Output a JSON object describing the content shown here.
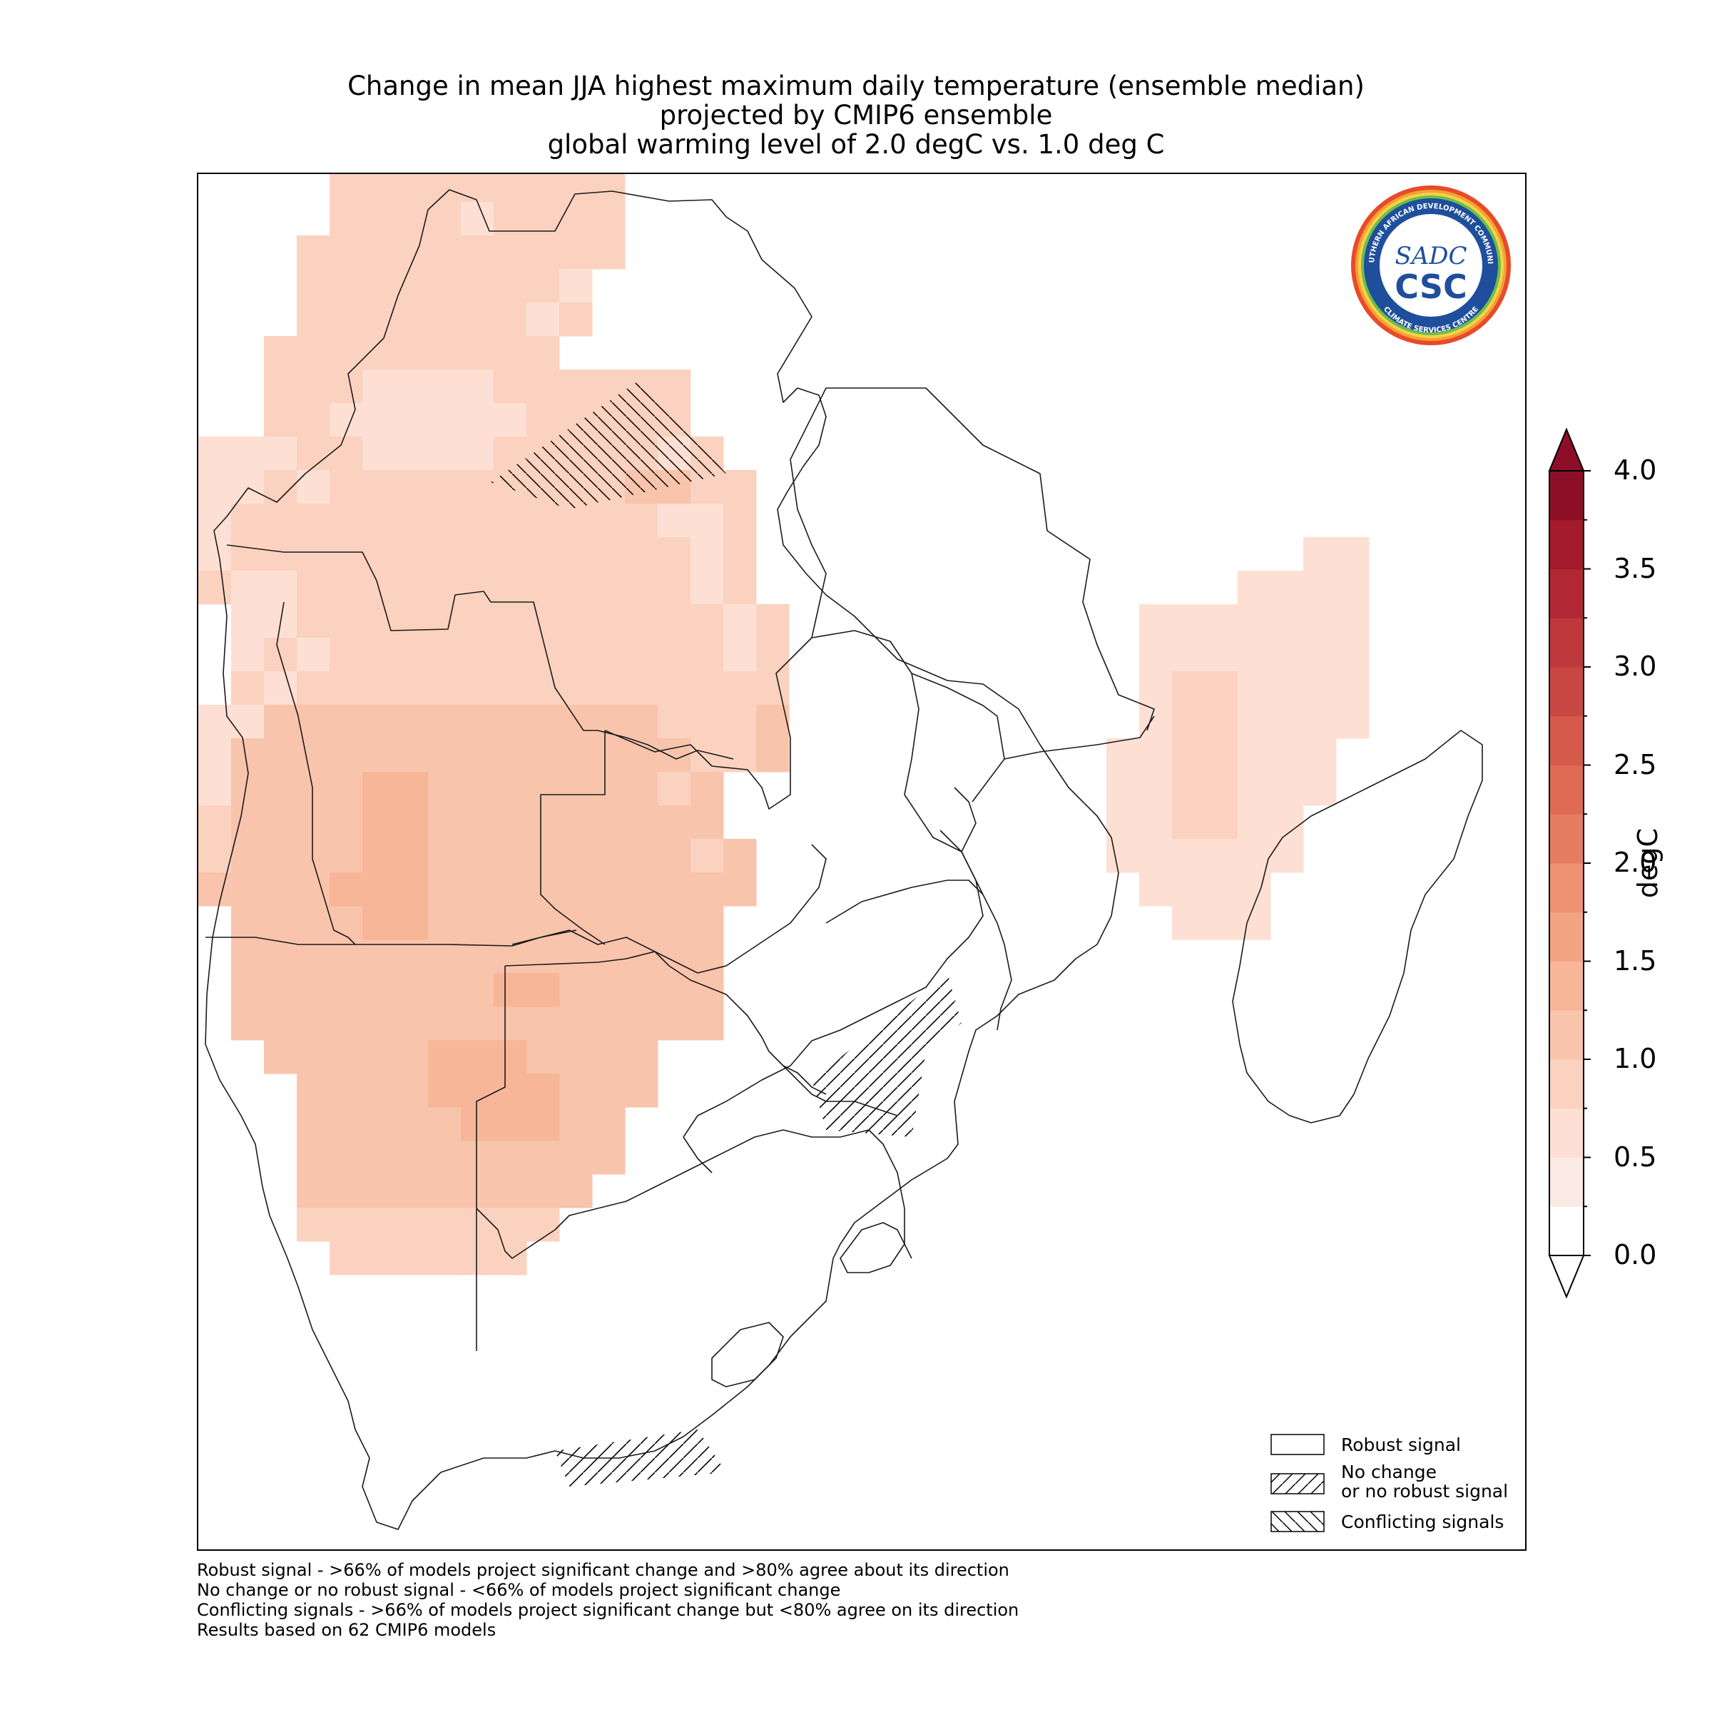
{
  "title_lines": [
    "Change in mean JJA highest maximum daily temperature (ensemble median)",
    "projected by CMIP6 ensemble",
    "global warming level of 2.0 degC vs. 1.0 deg C"
  ],
  "colorbar": {
    "label": "degC",
    "ticks": [
      "0.0",
      "0.5",
      "1.0",
      "1.5",
      "2.0",
      "2.5",
      "3.0",
      "3.5",
      "4.0"
    ],
    "min": 0.0,
    "max": 4.0,
    "step": 0.25,
    "extend": "both",
    "colors": [
      "#ffffff",
      "#fbeae4",
      "#fde0d3",
      "#fbd2bf",
      "#f9c4ac",
      "#f7b698",
      "#f3a484",
      "#ee9272",
      "#e67d62",
      "#df6b55",
      "#d55a4b",
      "#c94743",
      "#bf383b",
      "#b12834",
      "#a31a2d",
      "#8d0f27"
    ]
  },
  "legend": {
    "robust": "Robust signal",
    "no_change_line1": "No change",
    "no_change_line2": "or no robust signal",
    "conflicting": "Conflicting signals"
  },
  "footnotes": [
    "Robust signal - >66% of models project significant change and >80% agree about its direction",
    "No change or no robust signal - <66% of models project significant change",
    "Conflicting signals - >66% of models project significant change but <80% agree on its direction",
    "Results based on 62 CMIP6 models"
  ],
  "logo": {
    "text_top": "SOUTHERN AFRICAN DEVELOPMENT COMMUNITY",
    "text_bottom": "CLIMATE SERVICES CENTRE",
    "monogram": "SADC",
    "abbr": "CSC"
  },
  "map": {
    "region": "Southern Africa",
    "value_range_degC": [
      0.5,
      1.75
    ],
    "dominant_value_degC": 1.0,
    "max_value_region": "South Africa / Namibia interior"
  }
}
